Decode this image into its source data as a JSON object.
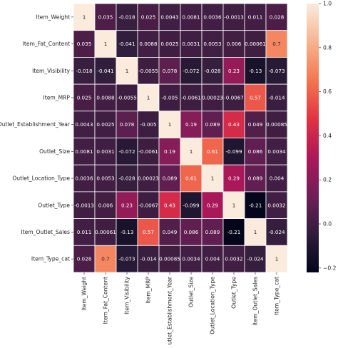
{
  "chart_data": {
    "type": "heatmap",
    "title": "",
    "rows": [
      "Item_Weight",
      "Item_Fat_Content",
      "Item_Visibility",
      "Item_MRP",
      "Outlet_Establishment_Year",
      "Outlet_Size",
      "Outlet_Location_Type",
      "Outlet_Type",
      "Item_Outlet_Sales",
      "Item_Type_cat"
    ],
    "columns": [
      "Item_Weight",
      "Item_Fat_Content",
      "Item_Visibility",
      "Item_MRP",
      "Outlet_Establishment_Year",
      "Outlet_Size",
      "Outlet_Location_Type",
      "Outlet_Type",
      "Item_Outlet_Sales",
      "Item_Type_cat"
    ],
    "values": [
      [
        1,
        0.035,
        -0.018,
        0.025,
        0.0043,
        0.0081,
        0.0036,
        -0.0013,
        0.011,
        0.028
      ],
      [
        0.035,
        1,
        -0.041,
        0.0088,
        0.0025,
        0.0031,
        0.0053,
        0.006,
        0.00061,
        0.7
      ],
      [
        -0.018,
        -0.041,
        1,
        -0.0055,
        0.078,
        -0.072,
        -0.028,
        0.23,
        -0.13,
        -0.073
      ],
      [
        0.025,
        0.0088,
        -0.0055,
        1,
        -0.005,
        -0.0061,
        0.00023,
        -0.0067,
        0.57,
        -0.014
      ],
      [
        0.0043,
        0.0025,
        0.078,
        -0.005,
        1,
        0.19,
        0.089,
        0.43,
        0.049,
        0.00085
      ],
      [
        0.0081,
        0.0031,
        -0.072,
        -0.0061,
        0.19,
        1,
        0.61,
        -0.099,
        0.086,
        0.0034
      ],
      [
        0.0036,
        0.0053,
        -0.028,
        0.00023,
        0.089,
        0.61,
        1,
        0.29,
        0.089,
        0.004
      ],
      [
        -0.0013,
        0.006,
        0.23,
        -0.0067,
        0.43,
        -0.099,
        0.29,
        1,
        -0.21,
        0.0032
      ],
      [
        0.011,
        0.00061,
        -0.13,
        0.57,
        0.049,
        0.086,
        0.089,
        -0.21,
        1,
        -0.024
      ],
      [
        0.028,
        0.7,
        -0.073,
        -0.014,
        0.00085,
        0.0034,
        0.004,
        0.0032,
        -0.024,
        1
      ]
    ],
    "labels": [
      [
        "1",
        "0.035",
        "-0.018",
        "0.025",
        "0.0043",
        "0.0081",
        "0.0036",
        "-0.0013",
        "0.011",
        "0.028"
      ],
      [
        "0.035",
        "1",
        "-0.041",
        "0.0088",
        "0.0025",
        "0.0031",
        "0.0053",
        "0.006",
        "0.00061",
        "0.7"
      ],
      [
        "-0.018",
        "-0.041",
        "1",
        "-0.0055",
        "0.078",
        "-0.072",
        "-0.028",
        "0.23",
        "-0.13",
        "-0.073"
      ],
      [
        "0.025",
        "0.0088",
        "-0.0055",
        "1",
        "-0.005",
        "-0.0061",
        "0.00023",
        "-0.0067",
        "0.57",
        "-0.014"
      ],
      [
        "0.0043",
        "0.0025",
        "0.078",
        "-0.005",
        "1",
        "0.19",
        "0.089",
        "0.43",
        "0.049",
        "0.00085"
      ],
      [
        "0.0081",
        "0.0031",
        "-0.072",
        "-0.0061",
        "0.19",
        "1",
        "0.61",
        "-0.099",
        "0.086",
        "0.0034"
      ],
      [
        "0.0036",
        "0.0053",
        "-0.028",
        "0.00023",
        "0.089",
        "0.61",
        "1",
        "0.29",
        "0.089",
        "0.004"
      ],
      [
        "-0.0013",
        "0.006",
        "0.23",
        "-0.0067",
        "0.43",
        "-0.099",
        "0.29",
        "1",
        "-0.21",
        "0.0032"
      ],
      [
        "0.011",
        "0.00061",
        "-0.13",
        "0.57",
        "0.049",
        "0.086",
        "0.089",
        "-0.21",
        "1",
        "-0.024"
      ],
      [
        "0.028",
        "0.7",
        "-0.073",
        "-0.014",
        "0.00085",
        "0.0034",
        "0.004",
        "0.0032",
        "-0.024",
        "1"
      ]
    ],
    "colorbar": {
      "range": [
        -0.22,
        1.0
      ],
      "ticks": [
        1.0,
        0.8,
        0.6,
        0.4,
        0.2,
        0.0,
        -0.2
      ],
      "tick_labels": [
        "1.0",
        "0.8",
        "0.6",
        "0.4",
        "0.2",
        "0.0",
        "−0.2"
      ],
      "colormap": "rocket",
      "stops": [
        "#03051A",
        "#2E1E3B",
        "#701F57",
        "#AE1759",
        "#E13342",
        "#F37651",
        "#F6B48F",
        "#FAEBDD"
      ]
    },
    "grid": true,
    "cell_border_color": "#ffffff",
    "annotations": true
  }
}
